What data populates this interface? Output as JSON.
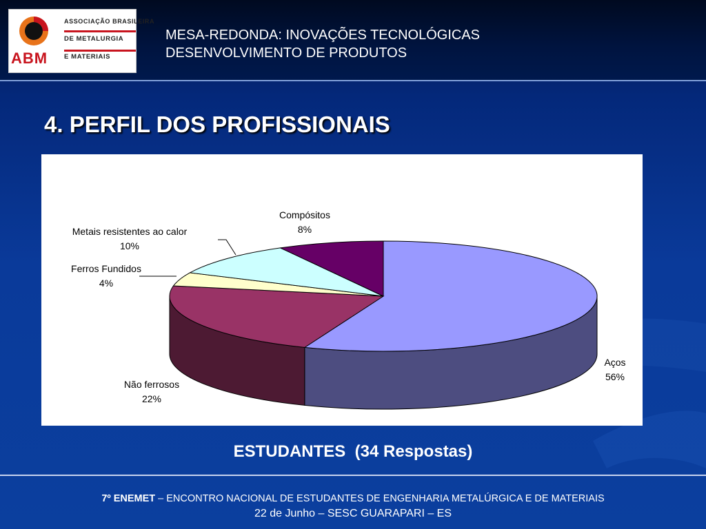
{
  "header": {
    "logo": {
      "acronym": "ABM",
      "lines": [
        "ASSOCIAÇÃO BRASILEIRA",
        "DE METALURGIA",
        "E MATERIAIS"
      ]
    },
    "title_line1": "MESA-REDONDA: INOVAÇÕES TECNOLÓGICAS",
    "title_line2": "DESENVOLVIMENTO DE PRODUTOS"
  },
  "section_title": "4. PERFIL DOS PROFISSIONAIS",
  "chart_data": {
    "type": "pie",
    "style": "3d",
    "slices": [
      {
        "name": "Aços",
        "value": 56,
        "label": "56%",
        "color": "#9999ff"
      },
      {
        "name": "Não ferrosos",
        "value": 22,
        "label": "22%",
        "color": "#993366"
      },
      {
        "name": "Ferros Fundidos",
        "value": 4,
        "label": "4%",
        "color": "#ffffcc"
      },
      {
        "name": "Metais resistentes ao calor",
        "value": 10,
        "label": "10%",
        "color": "#ccffff"
      },
      {
        "name": "Compósitos",
        "value": 8,
        "label": "8%",
        "color": "#660066"
      }
    ]
  },
  "caption": "ESTUDANTES  (34 Respostas)",
  "footer": {
    "event_bold": "7º ENEMET",
    "event_rest": " – ENCONTRO NACIONAL DE ESTUDANTES DE ENGENHARIA METALÚRGICA E DE MATERIAIS",
    "line2": "22 de Junho – SESC GUARAPARI – ES"
  }
}
